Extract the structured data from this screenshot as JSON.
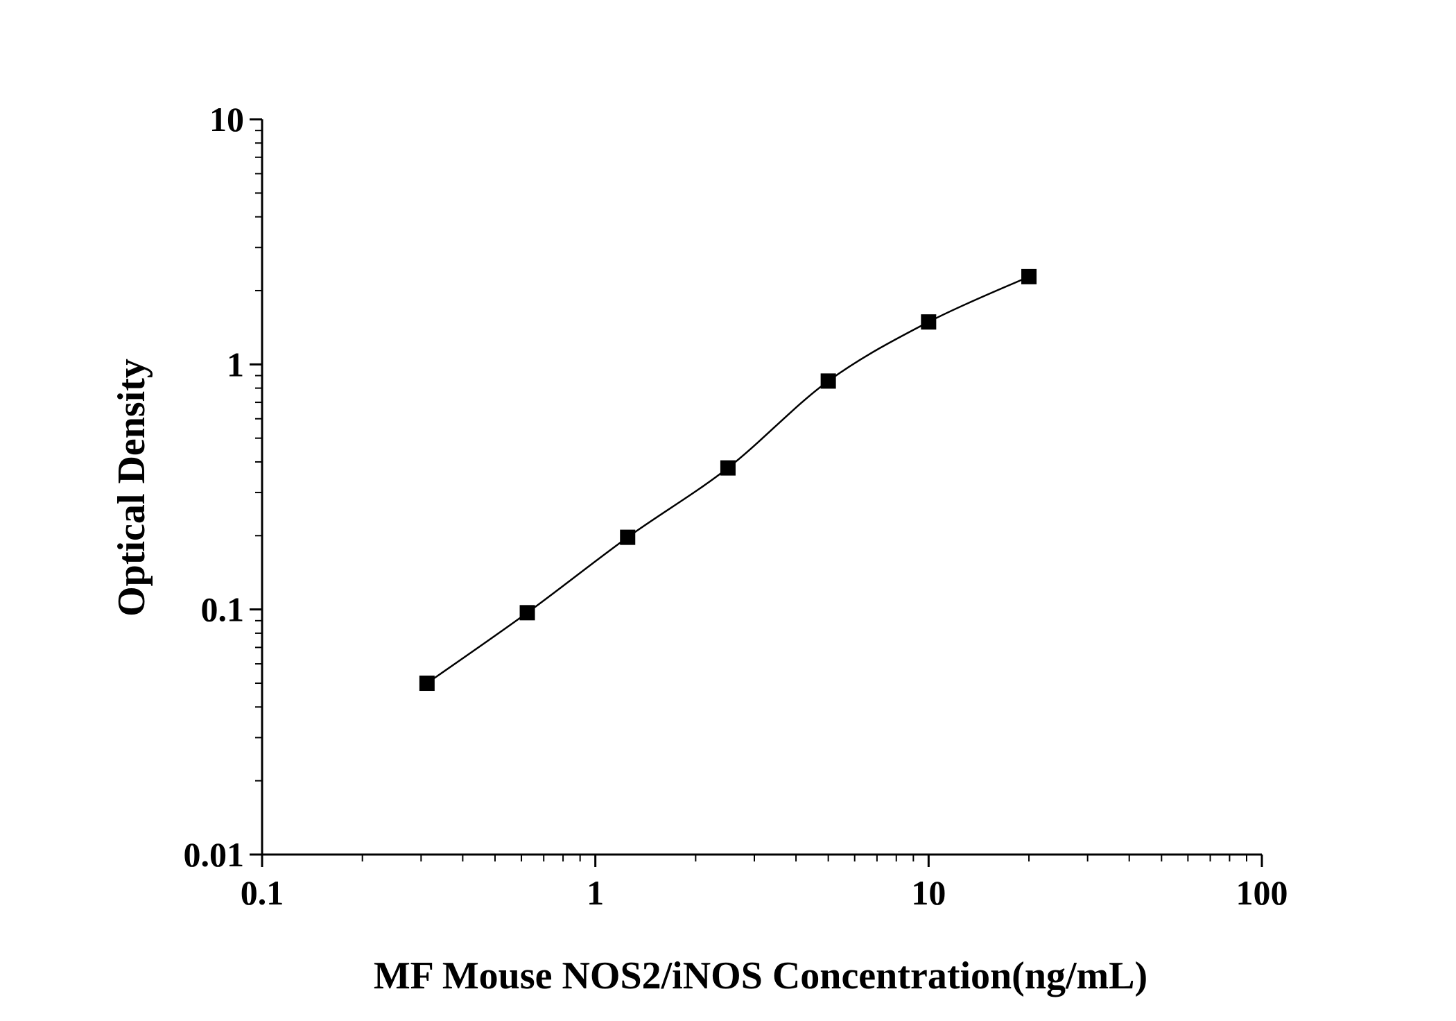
{
  "chart_data": {
    "type": "scatter",
    "xlabel": "MF Mouse NOS2/iNOS Concentration(ng/mL)",
    "ylabel": "Optical Density",
    "x_scale": "log",
    "y_scale": "log",
    "xlim": [
      0.1,
      100
    ],
    "ylim": [
      0.01,
      10
    ],
    "x_ticks": [
      "0.1",
      "1",
      "10",
      "100"
    ],
    "y_ticks": [
      "0.01",
      "0.1",
      "1",
      "10"
    ],
    "grid": false,
    "legend": "none",
    "series": [
      {
        "marker": "square",
        "fit_curve": true,
        "x": [
          0.3125,
          0.625,
          1.25,
          2.5,
          5,
          10,
          20
        ],
        "y": [
          0.05,
          0.097,
          0.197,
          0.378,
          0.855,
          1.49,
          2.28
        ]
      }
    ],
    "colors": {
      "marker": "#000000",
      "curve": "#000000",
      "axis": "#000000"
    }
  }
}
